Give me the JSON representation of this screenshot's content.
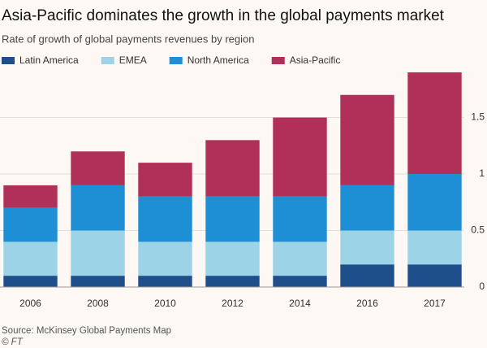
{
  "chart_data": {
    "type": "stacked_bar",
    "title": "Asia-Pacific dominates the growth in the global payments market",
    "subtitle": "Rate of growth of global payments revenues by region",
    "categories": [
      "2006",
      "2008",
      "2010",
      "2012",
      "2014",
      "2016",
      "2017"
    ],
    "series": [
      {
        "name": "Latin America",
        "color": "#1f4f8b",
        "values": [
          0.1,
          0.1,
          0.1,
          0.1,
          0.1,
          0.2,
          0.2
        ]
      },
      {
        "name": "EMEA",
        "color": "#9cd3e6",
        "values": [
          0.3,
          0.4,
          0.3,
          0.3,
          0.3,
          0.3,
          0.3
        ]
      },
      {
        "name": "North America",
        "color": "#1f8fd5",
        "values": [
          0.3,
          0.4,
          0.4,
          0.4,
          0.4,
          0.4,
          0.5
        ]
      },
      {
        "name": "Asia-Pacific",
        "color": "#b0305a",
        "values": [
          0.2,
          0.3,
          0.3,
          0.5,
          0.7,
          0.8,
          0.9
        ]
      }
    ],
    "ylim": [
      0,
      1.95
    ],
    "yticks": [
      0,
      0.5,
      1,
      1.5
    ],
    "grid": true,
    "source": "Source: McKinsey Global Payments Map",
    "credit": "© FT"
  }
}
